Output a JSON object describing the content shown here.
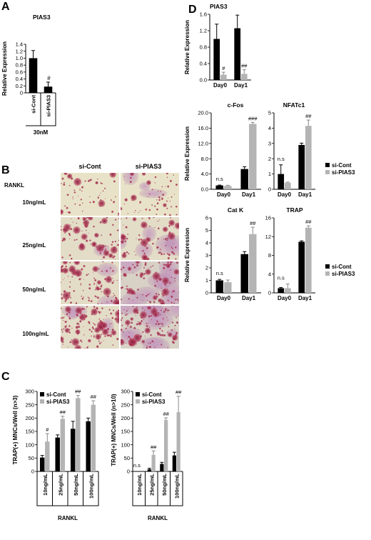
{
  "legend": {
    "cont": "si-Cont",
    "pias": "si-PIAS3"
  },
  "colors": {
    "cont": "#000000",
    "pias": "#b4b4b4",
    "bg": "#ffffff"
  },
  "panel_letters": {
    "a": "A",
    "b": "B",
    "c": "C",
    "d": "D"
  },
  "panel_b": {
    "col_labels": [
      "si-Cont",
      "si-PIAS3"
    ],
    "row_header": "RANKL",
    "row_labels": [
      "10ng/mL",
      "25ng/mL",
      "50ng/mL",
      "100ng/mL"
    ]
  },
  "chart_data": [
    {
      "panel": "A",
      "type": "bar",
      "title": "PIAS3",
      "ylabel": "Relative Expression",
      "categories": [
        "si-Cont",
        "si-PIAS3"
      ],
      "xsubtitle": "30nM",
      "ylim": [
        0,
        1.4
      ],
      "yticks": [
        "0",
        "0.2",
        "0.4",
        "0.6",
        "0.8",
        "1.0",
        "1.2",
        "1.4"
      ],
      "values": [
        1.0,
        0.18
      ],
      "errors": [
        0.22,
        0.13
      ],
      "annotations": [
        "",
        "#"
      ]
    },
    {
      "panel": "C-left",
      "type": "bar",
      "ylabel": "TRAP(+) MNCs/Well (n>3)",
      "xlabel": "RANKL",
      "categories": [
        "10ng/mL",
        "25ng/mL",
        "50ng/mL",
        "100ng/mL"
      ],
      "ylim": [
        0,
        300
      ],
      "yticks": [
        "0",
        "50",
        "100",
        "150",
        "200",
        "250",
        "300"
      ],
      "legend": [
        "si-Cont",
        "si-PIAS3"
      ],
      "series": [
        {
          "name": "si-Cont",
          "values": [
            52,
            127,
            160,
            188
          ],
          "errors": [
            8,
            10,
            28,
            12
          ]
        },
        {
          "name": "si-PIAS3",
          "values": [
            112,
            197,
            275,
            250
          ],
          "errors": [
            30,
            10,
            10,
            15
          ]
        }
      ],
      "annotations": [
        "#",
        "##",
        "##",
        "##"
      ]
    },
    {
      "panel": "C-right",
      "type": "bar",
      "ylabel": "TRAP(+) MNCs/Well (n>10)",
      "xlabel": "RANKL",
      "categories": [
        "10ng/mL",
        "25ng/mL",
        "50ng/mL",
        "100ng/mL"
      ],
      "ylim": [
        0,
        300
      ],
      "yticks": [
        "0",
        "50",
        "100",
        "150",
        "200",
        "250",
        "300"
      ],
      "legend": [
        "si-Cont",
        "si-PIAS3"
      ],
      "series": [
        {
          "name": "si-Cont",
          "values": [
            0,
            8,
            28,
            60
          ],
          "errors": [
            0,
            4,
            6,
            12
          ]
        },
        {
          "name": "si-PIAS3",
          "values": [
            0,
            62,
            193,
            222
          ],
          "errors": [
            0,
            15,
            8,
            60
          ]
        }
      ],
      "annotations": [
        "n.s",
        "##",
        "##",
        "##"
      ]
    },
    {
      "panel": "D-PIAS3",
      "type": "bar",
      "title": "PIAS3",
      "ylabel": "Relative Expression",
      "categories": [
        "Day0",
        "Day1"
      ],
      "ylim": [
        0,
        1.6
      ],
      "yticks": [
        "0.0",
        "0.4",
        "0.8",
        "1.2",
        "1.6"
      ],
      "series": [
        {
          "name": "si-Cont",
          "values": [
            1.0,
            1.26
          ],
          "errors": [
            0.36,
            0.32
          ]
        },
        {
          "name": "si-PIAS3",
          "values": [
            0.13,
            0.15
          ],
          "errors": [
            0.06,
            0.1
          ]
        }
      ],
      "annotations": [
        "#",
        "##"
      ]
    },
    {
      "panel": "D-cFos",
      "type": "bar",
      "title": "c-Fos",
      "ylabel": "Relative Expression",
      "categories": [
        "Day0",
        "Day1"
      ],
      "ylim": [
        0,
        20
      ],
      "yticks": [
        "0.0",
        "4.0",
        "8.0",
        "12.0",
        "16.0",
        "20.0"
      ],
      "series": [
        {
          "name": "si-Cont",
          "values": [
            1.0,
            5.3
          ],
          "errors": [
            0.1,
            0.6
          ]
        },
        {
          "name": "si-PIAS3",
          "values": [
            0.9,
            17.1
          ],
          "errors": [
            0.15,
            0.4
          ]
        }
      ],
      "annotations": [
        "n.s",
        "###"
      ]
    },
    {
      "panel": "D-NFATc1",
      "type": "bar",
      "title": "NFATc1",
      "categories": [
        "Day0",
        "Day1"
      ],
      "ylim": [
        0,
        5
      ],
      "yticks": [
        "0",
        "1",
        "2",
        "3",
        "4",
        "5"
      ],
      "legend": [
        "si-Cont",
        "si-PIAS3"
      ],
      "series": [
        {
          "name": "si-Cont",
          "values": [
            1.0,
            2.9
          ],
          "errors": [
            0.6,
            0.12
          ]
        },
        {
          "name": "si-PIAS3",
          "values": [
            0.43,
            4.15
          ],
          "errors": [
            0.04,
            0.38
          ]
        }
      ],
      "annotations": [
        "n.s",
        "##"
      ]
    },
    {
      "panel": "D-CatK",
      "type": "bar",
      "title": "Cat K",
      "ylabel": "Relative Expression",
      "categories": [
        "Day0",
        "Day1"
      ],
      "ylim": [
        0,
        6
      ],
      "yticks": [
        "0",
        "1",
        "2",
        "3",
        "4",
        "5",
        "6"
      ],
      "series": [
        {
          "name": "si-Cont",
          "values": [
            1.0,
            3.1
          ],
          "errors": [
            0.08,
            0.2
          ]
        },
        {
          "name": "si-PIAS3",
          "values": [
            0.85,
            4.7
          ],
          "errors": [
            0.18,
            0.55
          ]
        }
      ],
      "annotations": [
        "n.s",
        "##"
      ]
    },
    {
      "panel": "D-TRAP",
      "type": "bar",
      "title": "TRAP",
      "categories": [
        "Day0",
        "Day1"
      ],
      "ylim": [
        0,
        16
      ],
      "yticks": [
        "0",
        "4",
        "8",
        "12",
        "16"
      ],
      "legend": [
        "si-Cont",
        "si-PIAS3"
      ],
      "series": [
        {
          "name": "si-Cont",
          "values": [
            1.0,
            10.9
          ],
          "errors": [
            0.15,
            0.2
          ]
        },
        {
          "name": "si-PIAS3",
          "values": [
            1.0,
            13.9
          ],
          "errors": [
            0.9,
            0.4
          ]
        }
      ],
      "annotations": [
        "n.s",
        "##"
      ]
    }
  ]
}
